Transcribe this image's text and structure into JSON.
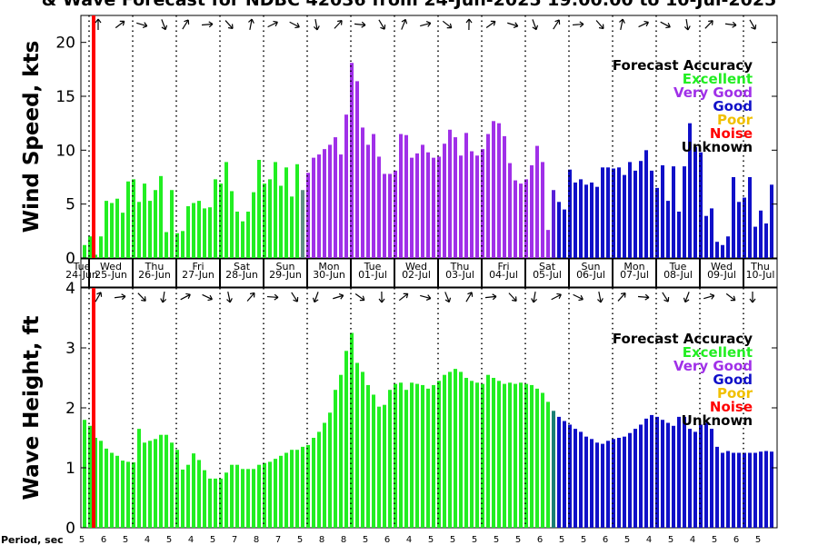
{
  "title": "& Wave Forecast for NDBC 42036 from 24-Jun-2025 19:00:00 to 10-Jul-2025",
  "colors": {
    "excellent": "#22ee22",
    "very_good": "#a030e8",
    "good": "#1010c8",
    "poor": "#f0c000",
    "noise": "#ff0000",
    "unknown": "#000000",
    "now_line": "#ff0000"
  },
  "legend": {
    "title": "Forecast Accuracy",
    "items": [
      {
        "label": "Excellent",
        "color": "#22ee22"
      },
      {
        "label": "Very Good",
        "color": "#a030e8"
      },
      {
        "label": "Good",
        "color": "#1010c8"
      },
      {
        "label": "Poor",
        "color": "#f0c000"
      },
      {
        "label": "Noise",
        "color": "#ff0000"
      },
      {
        "label": "Unknown",
        "color": "#000000"
      }
    ]
  },
  "period_label": "Period, sec",
  "chart_data": [
    {
      "type": "bar",
      "ylabel": "Wind Speed, kts",
      "ylim": [
        0,
        22.5
      ],
      "yticks": [
        0,
        5,
        10,
        15,
        20
      ],
      "grid": "dotted vertical lines at midnight",
      "legend_placement": "top-right",
      "day_labels": [
        {
          "dow": "Tue",
          "date": "24-Jun"
        },
        {
          "dow": "Wed",
          "date": "25-Jun"
        },
        {
          "dow": "Thu",
          "date": "26-Jun"
        },
        {
          "dow": "Fri",
          "date": "27-Jun"
        },
        {
          "dow": "Sat",
          "date": "28-Jun"
        },
        {
          "dow": "Sun",
          "date": "29-Jun"
        },
        {
          "dow": "Mon",
          "date": "30-Jun"
        },
        {
          "dow": "Tue",
          "date": "01-Jul"
        },
        {
          "dow": "Wed",
          "date": "02-Jul"
        },
        {
          "dow": "Thu",
          "date": "03-Jul"
        },
        {
          "dow": "Fri",
          "date": "04-Jul"
        },
        {
          "dow": "Sat",
          "date": "05-Jul"
        },
        {
          "dow": "Sun",
          "date": "06-Jul"
        },
        {
          "dow": "Mon",
          "date": "07-Jul"
        },
        {
          "dow": "Tue",
          "date": "08-Jul"
        },
        {
          "dow": "Wed",
          "date": "09-Jul"
        },
        {
          "dow": "Thu",
          "date": "10-Jul"
        }
      ],
      "values": [
        1.2,
        2.0,
        0.3,
        2.0,
        5.3,
        5.1,
        5.5,
        4.2,
        7.1,
        7.3,
        5.2,
        6.9,
        5.3,
        6.3,
        7.6,
        2.4,
        6.3,
        2.3,
        2.5,
        4.8,
        5.1,
        5.3,
        4.6,
        4.7,
        7.3,
        6.9,
        8.9,
        6.2,
        4.3,
        3.4,
        4.3,
        6.1,
        9.1,
        6.9,
        7.3,
        8.9,
        6.7,
        8.4,
        5.7,
        8.7,
        6.3,
        7.9,
        9.3,
        9.6,
        10.1,
        10.5,
        11.2,
        9.6,
        13.3,
        18.1,
        16.4,
        12.1,
        10.5,
        11.5,
        9.4,
        7.8,
        7.8,
        8.1,
        11.5,
        11.4,
        9.3,
        9.7,
        10.5,
        9.8,
        9.3,
        9.4,
        10.6,
        11.9,
        11.2,
        9.5,
        11.6,
        9.9,
        9.5,
        10.1,
        11.5,
        12.7,
        12.5,
        11.3,
        8.8,
        7.2,
        6.9,
        7.3,
        8.6,
        10.4,
        8.9,
        2.6,
        6.3,
        5.2,
        4.5,
        8.2,
        7.0,
        7.3,
        6.8,
        7.0,
        6.6,
        8.4,
        8.4,
        8.3,
        8.4,
        7.7,
        8.9,
        8.1,
        9.0,
        10.0,
        8.1,
        6.5,
        8.6,
        5.3,
        8.5,
        4.3,
        8.5,
        12.5,
        10.3,
        9.8,
        3.9,
        4.6,
        1.5,
        1.2,
        2.0,
        7.5,
        5.2,
        5.6,
        7.5,
        2.9,
        4.4,
        3.2,
        6.8,
        9.1,
        4.7,
        5.3,
        4.3
      ],
      "accuracy": [
        "E",
        "E",
        "E",
        "E",
        "E",
        "E",
        "E",
        "E",
        "E",
        "E",
        "E",
        "E",
        "E",
        "E",
        "E",
        "E",
        "E",
        "E",
        "E",
        "E",
        "E",
        "E",
        "E",
        "E",
        "E",
        "E",
        "E",
        "E",
        "E",
        "E",
        "E",
        "E",
        "E",
        "E",
        "E",
        "E",
        "E",
        "E",
        "E",
        "E",
        "V",
        "V",
        "V",
        "V",
        "V",
        "V",
        "V",
        "V",
        "V",
        "V",
        "V",
        "V",
        "V",
        "V",
        "V",
        "V",
        "V",
        "V",
        "V",
        "V",
        "V",
        "V",
        "V",
        "V",
        "V",
        "V",
        "V",
        "V",
        "V",
        "V",
        "V",
        "V",
        "V",
        "V",
        "V",
        "V",
        "V",
        "V",
        "V",
        "V",
        "V",
        "V",
        "V",
        "V",
        "V",
        "V",
        "G",
        "G",
        "G",
        "G",
        "G",
        "G",
        "G",
        "G",
        "G",
        "G",
        "G",
        "G",
        "G",
        "G",
        "G",
        "G",
        "G",
        "G",
        "G",
        "G",
        "G",
        "G",
        "G",
        "G",
        "G",
        "G",
        "G",
        "G",
        "G",
        "G",
        "G",
        "G",
        "G",
        "G",
        "G",
        "G",
        "G",
        "G",
        "G",
        "G",
        "G",
        "G",
        "G",
        "G",
        "G"
      ]
    },
    {
      "type": "bar",
      "ylabel": "Wave Height, ft",
      "ylim": [
        0,
        4
      ],
      "yticks": [
        0,
        1,
        2,
        3,
        4
      ],
      "grid": "dotted vertical lines at midnight",
      "legend_placement": "top-right",
      "values": [
        1.8,
        1.7,
        1.5,
        1.45,
        1.32,
        1.25,
        1.2,
        1.12,
        1.1,
        1.09,
        1.65,
        1.42,
        1.45,
        1.48,
        1.55,
        1.55,
        1.42,
        1.3,
        0.97,
        1.05,
        1.24,
        1.13,
        0.96,
        0.82,
        0.82,
        0.82,
        0.92,
        1.05,
        1.05,
        0.98,
        0.98,
        0.98,
        1.05,
        1.08,
        1.1,
        1.15,
        1.2,
        1.25,
        1.3,
        1.3,
        1.35,
        1.38,
        1.5,
        1.6,
        1.75,
        1.92,
        2.3,
        2.55,
        2.95,
        3.25,
        2.75,
        2.6,
        2.38,
        2.22,
        2.02,
        2.05,
        2.3,
        2.4,
        2.42,
        2.3,
        2.42,
        2.4,
        2.38,
        2.32,
        2.38,
        2.45,
        2.55,
        2.6,
        2.65,
        2.6,
        2.5,
        2.45,
        2.42,
        2.4,
        2.55,
        2.5,
        2.45,
        2.4,
        2.42,
        2.4,
        2.42,
        2.4,
        2.38,
        2.32,
        2.25,
        2.1,
        1.95,
        1.85,
        1.78,
        1.72,
        1.65,
        1.6,
        1.52,
        1.48,
        1.42,
        1.4,
        1.45,
        1.48,
        1.5,
        1.52,
        1.58,
        1.65,
        1.72,
        1.82,
        1.88,
        1.85,
        1.8,
        1.75,
        1.7,
        1.85,
        1.85,
        1.65,
        1.6,
        1.72,
        1.75,
        1.65,
        1.35,
        1.25,
        1.28,
        1.25,
        1.25,
        1.25,
        1.25,
        1.25,
        1.27,
        1.28,
        1.27,
        1.3,
        1.5,
        1.75,
        1.75,
        1.65
      ],
      "accuracy": [
        "E",
        "E",
        "E",
        "E",
        "E",
        "E",
        "E",
        "E",
        "E",
        "E",
        "E",
        "E",
        "E",
        "E",
        "E",
        "E",
        "E",
        "E",
        "E",
        "E",
        "E",
        "E",
        "E",
        "E",
        "E",
        "E",
        "E",
        "E",
        "E",
        "E",
        "E",
        "E",
        "E",
        "E",
        "E",
        "E",
        "E",
        "E",
        "E",
        "E",
        "E",
        "E",
        "E",
        "E",
        "E",
        "E",
        "E",
        "E",
        "E",
        "E",
        "E",
        "E",
        "E",
        "E",
        "E",
        "E",
        "E",
        "E",
        "E",
        "E",
        "E",
        "E",
        "E",
        "E",
        "E",
        "E",
        "E",
        "E",
        "E",
        "E",
        "E",
        "E",
        "E",
        "E",
        "E",
        "E",
        "E",
        "E",
        "E",
        "E",
        "E",
        "E",
        "E",
        "E",
        "E",
        "E",
        "G",
        "G",
        "G",
        "G",
        "G",
        "G",
        "G",
        "G",
        "G",
        "G",
        "G",
        "G",
        "G",
        "G",
        "G",
        "G",
        "G",
        "G",
        "G",
        "G",
        "G",
        "G",
        "G",
        "G",
        "G",
        "G",
        "G",
        "G",
        "G",
        "G",
        "G",
        "G",
        "G",
        "G",
        "G",
        "G",
        "G",
        "G",
        "G",
        "G",
        "G",
        "G",
        "G",
        "G",
        "G"
      ],
      "period_sec": [
        "5",
        "6",
        "5",
        "4",
        "5",
        "4",
        "5",
        "7",
        "8",
        "7",
        "5",
        "8",
        "8",
        "5",
        "6",
        "4",
        "5",
        "5",
        "5",
        "5",
        "5",
        "6",
        "5",
        "5",
        "6",
        "5",
        "4",
        "5",
        "4",
        "5",
        "6",
        "5",
        "5",
        "3",
        "3",
        "4",
        "5",
        "5"
      ]
    }
  ]
}
